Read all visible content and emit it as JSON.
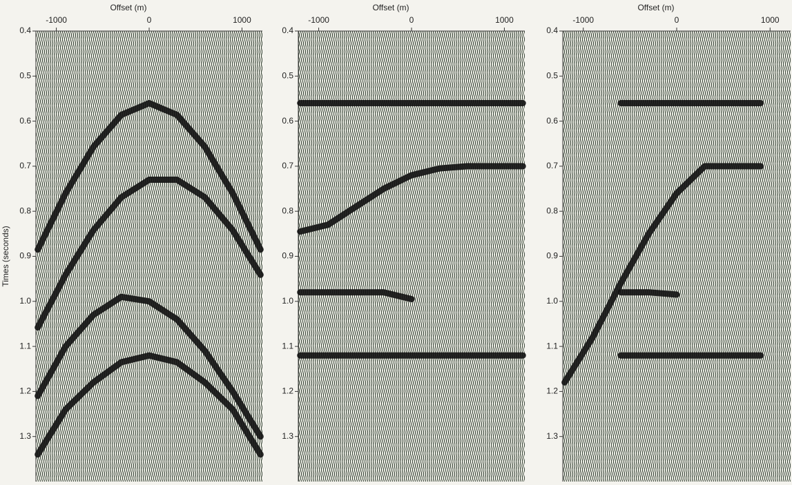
{
  "chart_data": [
    {
      "type": "line",
      "xlabel": "Offset (m)",
      "ylabel": "Times (seconds)",
      "x": [
        -1200,
        -900,
        -600,
        -300,
        0,
        300,
        600,
        900,
        1200
      ],
      "series": [
        {
          "color": "#111111",
          "values": [
            0.885,
            0.76,
            0.657,
            0.586,
            0.56,
            0.586,
            0.657,
            0.76,
            0.885
          ]
        },
        {
          "color": "#111111",
          "values": [
            1.058,
            0.941,
            0.842,
            0.769,
            0.73,
            0.73,
            0.769,
            0.842,
            0.941
          ]
        },
        {
          "color": "#111111",
          "values": [
            1.21,
            1.1,
            1.03,
            0.99,
            1.0,
            1.04,
            1.11,
            1.2,
            1.3
          ]
        },
        {
          "color": "#111111",
          "values": [
            1.34,
            1.24,
            1.18,
            1.135,
            1.12,
            1.135,
            1.18,
            1.24,
            1.34
          ]
        }
      ],
      "xlim": [
        -1220,
        1220
      ],
      "ylim": [
        0.4,
        1.4
      ],
      "y_inverted": true,
      "xticks": [
        -1000,
        0,
        1000
      ],
      "yticks": [
        0.4,
        0.5,
        0.6,
        0.7,
        0.8,
        0.9,
        {
          "value": 1,
          "label": "1.0"
        },
        1.1,
        1.2,
        1.3
      ]
    },
    {
      "type": "line",
      "xlabel": "Offset (m)",
      "x": [
        -1200,
        -900,
        -600,
        -300,
        0,
        300,
        600,
        900,
        1200
      ],
      "series": [
        {
          "color": "#111111",
          "values": [
            0.56,
            0.56,
            0.56,
            0.56,
            0.56,
            0.56,
            0.56,
            0.56,
            0.56
          ]
        },
        {
          "color": "#111111",
          "values": [
            0.845,
            0.83,
            0.79,
            0.75,
            0.72,
            0.705,
            0.7,
            0.7,
            0.7
          ]
        },
        {
          "color": "#111111",
          "values": [
            0.98,
            0.98,
            0.98,
            0.98,
            0.995,
            null,
            null,
            null,
            null
          ]
        },
        {
          "color": "#111111",
          "values": [
            1.12,
            1.12,
            1.12,
            1.12,
            1.12,
            1.12,
            1.12,
            1.12,
            1.12
          ]
        }
      ],
      "xlim": [
        -1220,
        1220
      ],
      "ylim": [
        0.4,
        1.4
      ],
      "y_inverted": true,
      "xticks": [
        -1000,
        0,
        1000
      ],
      "yticks": [
        0.4,
        0.5,
        0.6,
        0.7,
        0.8,
        0.9,
        {
          "value": 1,
          "label": "1.0"
        },
        1.1,
        1.2,
        1.3
      ]
    },
    {
      "type": "line",
      "xlabel": "Offset (m)",
      "x": [
        -1200,
        -900,
        -600,
        -300,
        0,
        300,
        600,
        900,
        1200
      ],
      "series": [
        {
          "color": "#111111",
          "values": [
            null,
            null,
            0.56,
            0.56,
            0.56,
            0.56,
            0.56,
            0.56,
            null
          ]
        },
        {
          "color": "#111111",
          "values": [
            1.18,
            1.08,
            0.96,
            0.85,
            0.76,
            0.7,
            0.7,
            0.7,
            null
          ]
        },
        {
          "color": "#111111",
          "values": [
            null,
            null,
            0.98,
            0.98,
            0.985,
            null,
            null,
            null,
            null
          ]
        },
        {
          "color": "#111111",
          "values": [
            null,
            null,
            1.12,
            1.12,
            1.12,
            1.12,
            1.12,
            1.12,
            null
          ]
        }
      ],
      "xlim": [
        -1220,
        1220
      ],
      "ylim": [
        0.4,
        1.4
      ],
      "y_inverted": true,
      "xticks": [
        -1000,
        0,
        1000
      ],
      "yticks": [
        0.4,
        0.5,
        0.6,
        0.7,
        0.8,
        0.9,
        {
          "value": 1,
          "label": "1.0"
        },
        1.1,
        1.2,
        1.3
      ]
    }
  ]
}
